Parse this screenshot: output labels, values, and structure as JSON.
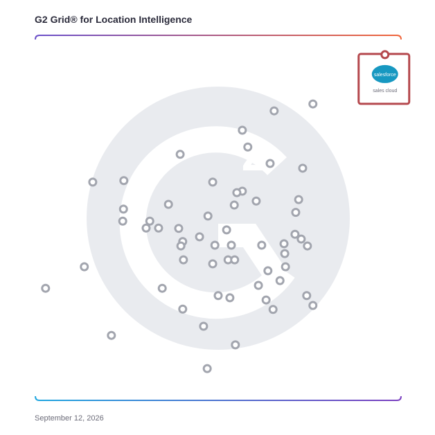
{
  "chart_data": {
    "type": "scatter",
    "title": "G2 Grid® for Location Intelligence",
    "date": "September 12, 2026",
    "xlim": [
      0,
      100
    ],
    "ylim": [
      0,
      100
    ],
    "x": [
      75.9,
      65.3,
      56.6,
      58.1,
      39.6,
      64.2,
      73.1,
      15.7,
      24.2,
      48.5,
      56.6,
      55.1,
      72.0,
      60.4,
      36.4,
      54.4,
      24.1,
      71.2,
      47.2,
      23.9,
      31.3,
      30.3,
      33.7,
      39.2,
      52.3,
      71.0,
      72.7,
      44.9,
      40.3,
      39.8,
      49.1,
      53.6,
      61.9,
      68.0,
      74.4,
      68.2,
      40.5,
      52.7,
      54.5,
      48.5,
      68.4,
      13.4,
      63.6,
      66.9,
      61.0,
      2.8,
      34.7,
      50.0,
      53.2,
      74.2,
      63.1,
      75.9,
      65.0,
      40.3,
      46.0,
      20.8,
      54.7,
      47.0
    ],
    "y": [
      81.2,
      79.3,
      74.0,
      69.4,
      67.4,
      64.9,
      63.6,
      59.8,
      60.2,
      59.8,
      57.3,
      56.9,
      55.0,
      54.6,
      53.7,
      53.5,
      52.4,
      51.5,
      50.5,
      49.1,
      49.1,
      47.2,
      47.2,
      47.1,
      46.7,
      45.5,
      44.2,
      44.8,
      43.5,
      42.3,
      42.5,
      42.5,
      42.5,
      42.9,
      42.3,
      40.2,
      38.5,
      38.5,
      38.5,
      37.4,
      36.6,
      36.6,
      35.5,
      32.8,
      31.5,
      30.7,
      30.7,
      28.7,
      28.1,
      28.7,
      27.5,
      26.0,
      24.9,
      25.0,
      20.3,
      17.8,
      15.2,
      8.7
    ],
    "color": "#a2a5ae",
    "highlight": {
      "label": "salesforce",
      "sublabel": "sales cloud",
      "x": 95.6,
      "y": 94.7,
      "color": "#b5484d"
    }
  }
}
